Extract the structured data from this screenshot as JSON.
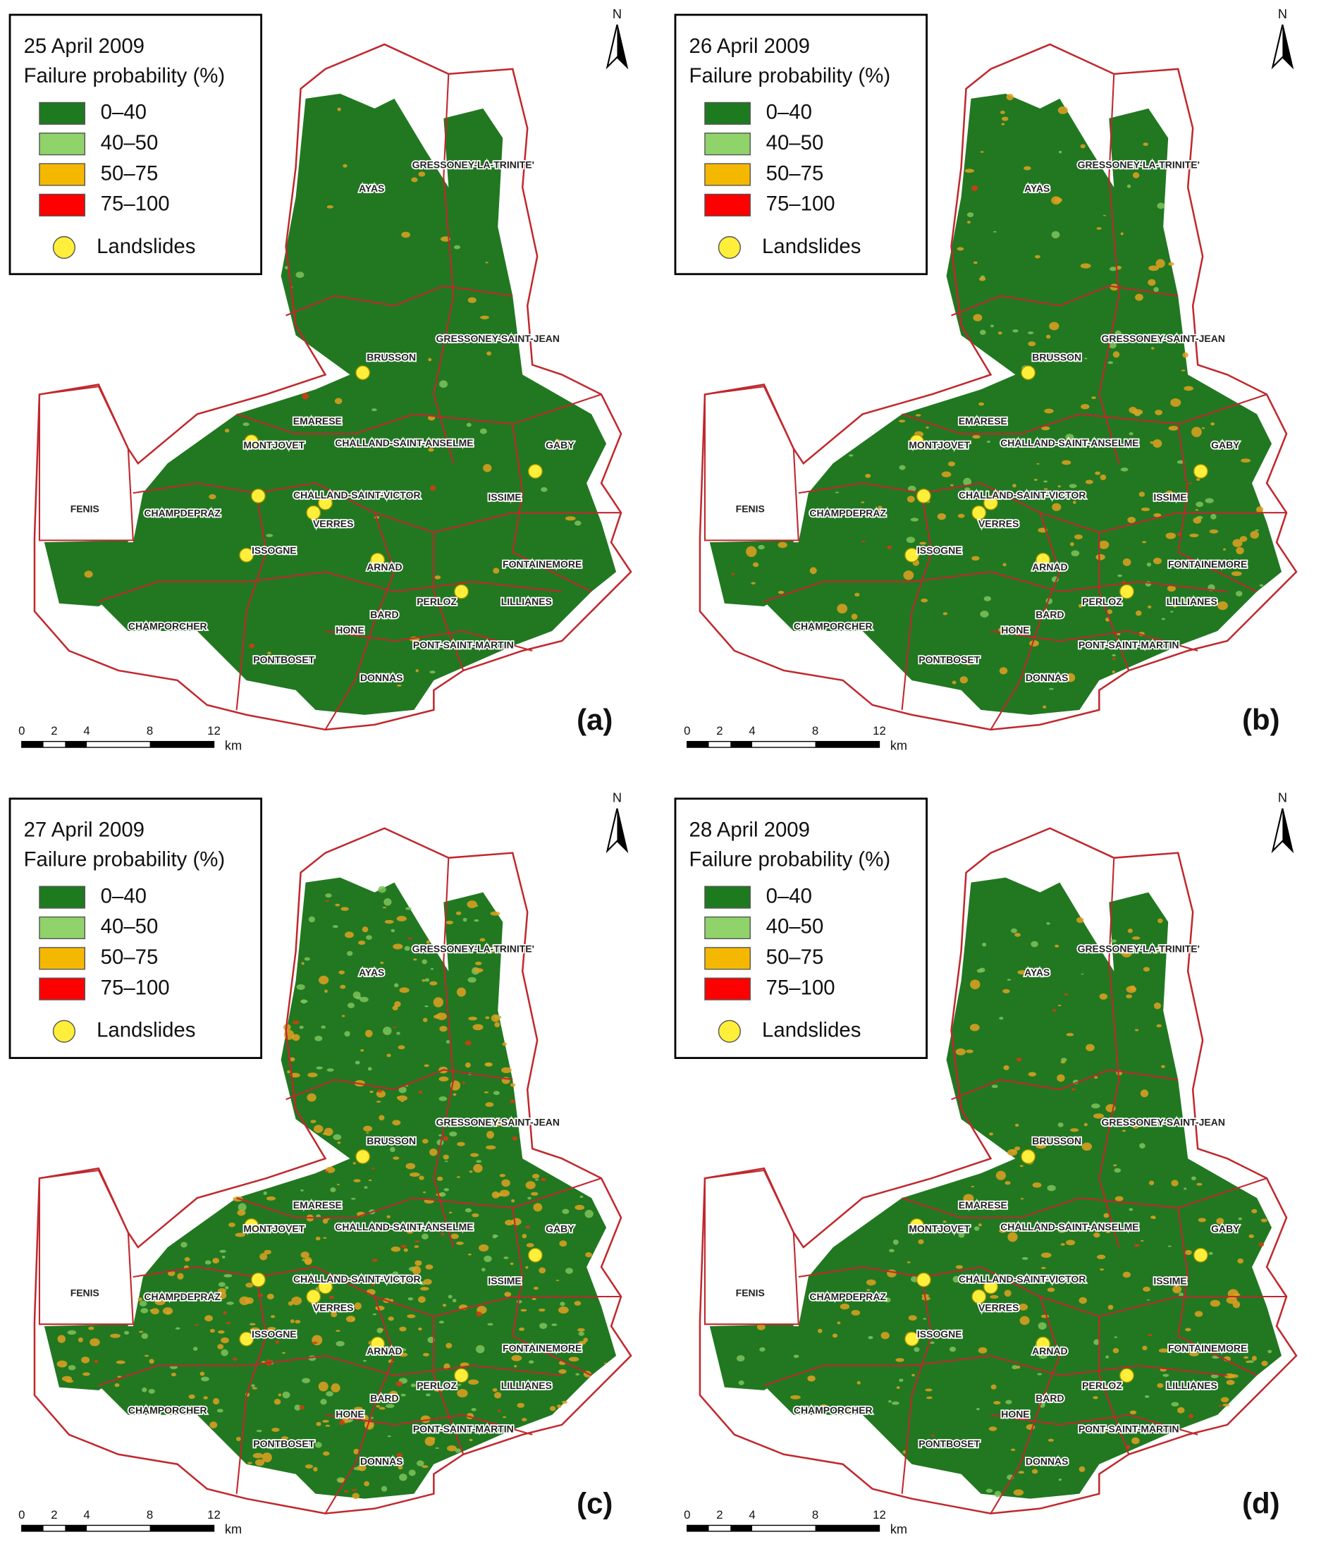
{
  "panels": [
    {
      "label": "(a)",
      "date": "25 April 2009",
      "legend_title": "Failure probability  (%)",
      "legend": [
        "0–40",
        "40–50",
        "50–75",
        "75–100",
        "Landslides"
      ],
      "places": [
        "AYAS",
        "GRESSONEY-LA-TRINITE'",
        "GRESSONEY-SAINT-JEAN",
        "BRUSSON",
        "EMARESE",
        "MONTJOVET",
        "CHALLAND-SAINT-ANSELME",
        "GABY",
        "CHALLAND-SAINT-VICTOR",
        "ISSIME",
        "FENIS",
        "CHAMPDEPRAZ",
        "VERRES",
        "ISSOGNE",
        "ARNAD",
        "FONTAINEMORE",
        "PERLOZ",
        "LILLIANES",
        "CHAMPORCHER",
        "HONE",
        "BARD",
        "PONT-SAINT-MARTIN",
        "PONTBOSET",
        "DONNAS"
      ],
      "scale": [
        "0",
        "2",
        "4",
        "8",
        "12",
        "km"
      ],
      "north": "N"
    },
    {
      "label": "(b)",
      "date": "26 April 2009",
      "legend_title": "Failure probability  (%)",
      "legend": [
        "0–40",
        "40–50",
        "50–75",
        "75–100",
        "Landslides"
      ],
      "places": [
        "AYAS",
        "GRESSONEY-LA-TRINITE'",
        "GRESSONEY-SAINT-JEAN",
        "BRUSSON",
        "EMARESE",
        "MONTJOVET",
        "CHALLAND-SAINT-ANSELME",
        "GABY",
        "CHALLAND-SAINT-VICTOR",
        "ISSIME",
        "FENIS",
        "CHAMPDEPRAZ",
        "VERRES",
        "ISSOGNE",
        "ARNAD",
        "FONTAINEMORE",
        "PERLOZ",
        "LILLIANES",
        "CHAMPORCHER",
        "HONE",
        "BARD",
        "PONT-SAINT-MARTIN",
        "PONTBOSET",
        "DONNAS"
      ],
      "scale": [
        "0",
        "2",
        "4",
        "8",
        "12",
        "km"
      ],
      "north": "N"
    },
    {
      "label": "(c)",
      "date": "27 April 2009",
      "legend_title": "Failure probability  (%)",
      "legend": [
        "0–40",
        "40–50",
        "50–75",
        "75–100",
        "Landslides"
      ],
      "places": [
        "AYAS",
        "GRESSONEY-LA-TRINITE'",
        "GRESSONEY-SAINT-JEAN",
        "BRUSSON",
        "EMARESE",
        "MONTJOVET",
        "CHALLAND-SAINT-ANSELME",
        "GABY",
        "CHALLAND-SAINT-VICTOR",
        "ISSIME",
        "FENIS",
        "CHAMPDEPRAZ",
        "VERRES",
        "ISSOGNE",
        "ARNAD",
        "FONTAINEMORE",
        "PERLOZ",
        "LILLIANES",
        "CHAMPORCHER",
        "HONE",
        "BARD",
        "PONT-SAINT-MARTIN",
        "PONTBOSET",
        "DONNAS"
      ],
      "scale": [
        "0",
        "2",
        "4",
        "8",
        "12",
        "km"
      ],
      "north": "N"
    },
    {
      "label": "(d)",
      "date": "28 April 2009",
      "legend_title": "Failure probability  (%)",
      "legend": [
        "0–40",
        "40–50",
        "50–75",
        "75–100",
        "Landslides"
      ],
      "places": [
        "AYAS",
        "GRESSONEY-LA-TRINITE'",
        "GRESSONEY-SAINT-JEAN",
        "BRUSSON",
        "EMARESE",
        "MONTJOVET",
        "CHALLAND-SAINT-ANSELME",
        "GABY",
        "CHALLAND-SAINT-VICTOR",
        "ISSIME",
        "FENIS",
        "CHAMPDEPRAZ",
        "VERRES",
        "ISSOGNE",
        "ARNAD",
        "FONTAINEMORE",
        "PERLOZ",
        "LILLIANES",
        "CHAMPORCHER",
        "HONE",
        "BARD",
        "PONT-SAINT-MARTIN",
        "PONTBOSET",
        "DONNAS"
      ],
      "scale": [
        "0",
        "2",
        "4",
        "8",
        "12",
        "km"
      ],
      "north": "N"
    }
  ]
}
